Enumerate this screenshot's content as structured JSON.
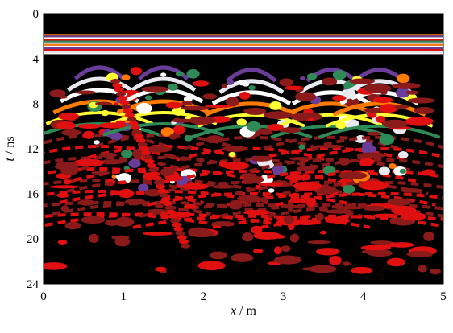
{
  "chart_data": {
    "type": "heatmap",
    "title": "",
    "xlabel_var": "x",
    "xlabel_unit": " / m",
    "ylabel_var": "t",
    "ylabel_unit": " / ns",
    "xlim": [
      0,
      5
    ],
    "ylim": [
      0,
      24
    ],
    "y_inverted": true,
    "x_ticks": [
      "0",
      "1",
      "2",
      "3",
      "4",
      "5"
    ],
    "y_ticks": [
      "0",
      "4",
      "8",
      "12",
      "16",
      "20",
      "24"
    ],
    "colormap": [
      "#000000",
      "#8b1a1a",
      "#e01010",
      "#ff7a00",
      "#ffff33",
      "#2e8b57",
      "#6a3d9a",
      "#e8e8f0",
      "#ffffff"
    ],
    "background_color": "#000000",
    "direct_wave_t": [
      1.8,
      3.6
    ],
    "anomalies": [
      {
        "x": 0.7,
        "t": 4.5,
        "label": "hyperbola"
      },
      {
        "x": 1.5,
        "t": 4.5,
        "label": "hyperbola"
      },
      {
        "x": 2.6,
        "t": 4.7,
        "label": "hyperbola"
      },
      {
        "x": 3.6,
        "t": 4.7,
        "label": "hyperbola"
      },
      {
        "x": 4.2,
        "t": 4.7,
        "label": "hyperbola"
      }
    ]
  }
}
